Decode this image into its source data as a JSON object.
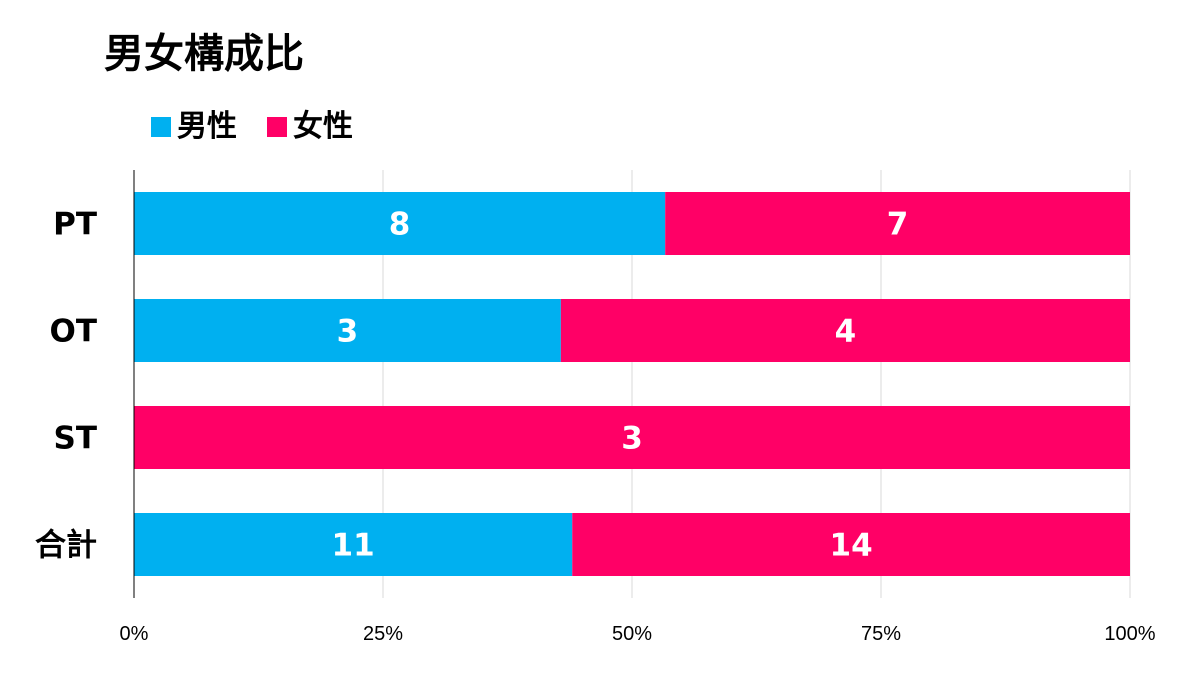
{
  "chart_data": {
    "type": "bar",
    "orientation": "horizontal",
    "stacked": "percent",
    "title": "男女構成比",
    "categories": [
      "PT",
      "OT",
      "ST",
      "合計"
    ],
    "series": [
      {
        "name": "男性",
        "values": [
          8,
          3,
          0,
          11
        ],
        "color": "#00B0F0"
      },
      {
        "name": "女性",
        "values": [
          7,
          4,
          3,
          14
        ],
        "color": "#FF0066"
      }
    ],
    "xlim": [
      0,
      100
    ],
    "x_ticks": [
      "0%",
      "25%",
      "50%",
      "75%",
      "100%"
    ],
    "grid": true,
    "legend": "top-left",
    "data_labels": true
  }
}
